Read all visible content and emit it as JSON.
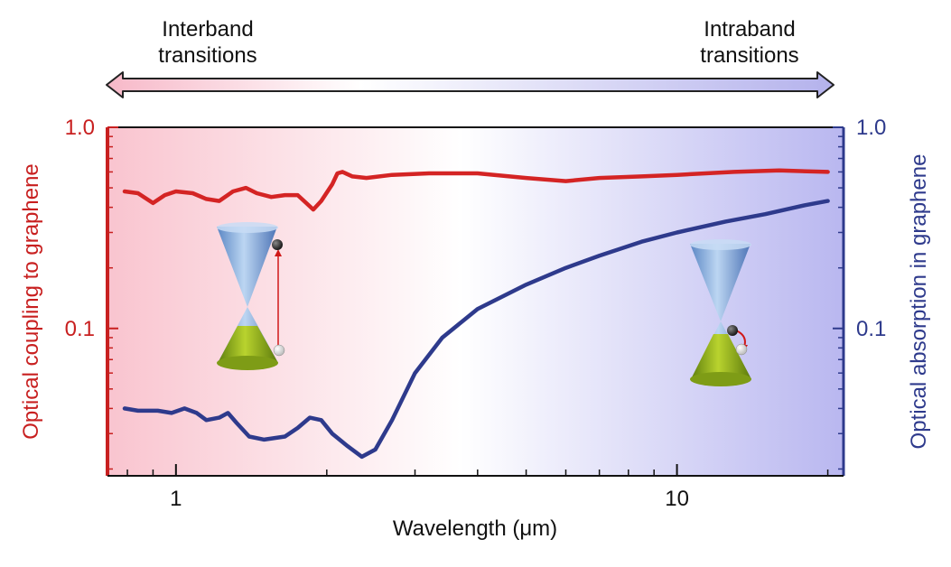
{
  "header": {
    "left_label_line1": "Interband",
    "left_label_line2": "transitions",
    "right_label_line1": "Intraband",
    "right_label_line2": "transitions"
  },
  "colors": {
    "red_series": "#d42424",
    "blue_series": "#2e3a8c",
    "left_axis": "#c82020",
    "right_axis": "#2e3a8c",
    "bg_left": "#f9c4cf",
    "bg_mid": "#ffffff",
    "bg_right": "#b9b7f0",
    "cone_blue": "#7ea8d8",
    "cone_green": "#8aaa1c"
  },
  "chart_data": {
    "type": "line",
    "xlabel": "Wavelength (μm)",
    "ylabel_left": "Optical coupling to graphene",
    "ylabel_right": "Optical absorption in graphene",
    "xscale": "log",
    "yscale": "log",
    "xlim": [
      0.73,
      21.5
    ],
    "ylim": [
      0.0185,
      1.0
    ],
    "x_ticks": [
      {
        "value": 1,
        "label": "1"
      },
      {
        "value": 10,
        "label": "10"
      }
    ],
    "y_ticks_left": [
      {
        "value": 1.0,
        "label": "1.0"
      },
      {
        "value": 0.1,
        "label": "0.1"
      }
    ],
    "y_ticks_right": [
      {
        "value": 1.0,
        "label": "1.0"
      },
      {
        "value": 0.1,
        "label": "0.1"
      }
    ],
    "grid": false,
    "series": [
      {
        "axis": "left",
        "points": [
          [
            0.79,
            0.48
          ],
          [
            0.84,
            0.47
          ],
          [
            0.9,
            0.42
          ],
          [
            0.95,
            0.46
          ],
          [
            1.0,
            0.48
          ],
          [
            1.08,
            0.47
          ],
          [
            1.15,
            0.44
          ],
          [
            1.22,
            0.43
          ],
          [
            1.3,
            0.48
          ],
          [
            1.38,
            0.5
          ],
          [
            1.45,
            0.47
          ],
          [
            1.55,
            0.45
          ],
          [
            1.65,
            0.46
          ],
          [
            1.75,
            0.46
          ],
          [
            1.82,
            0.42
          ],
          [
            1.88,
            0.39
          ],
          [
            1.95,
            0.43
          ],
          [
            2.05,
            0.52
          ],
          [
            2.1,
            0.59
          ],
          [
            2.15,
            0.6
          ],
          [
            2.25,
            0.57
          ],
          [
            2.4,
            0.56
          ],
          [
            2.7,
            0.58
          ],
          [
            3.2,
            0.59
          ],
          [
            4.0,
            0.59
          ],
          [
            5.0,
            0.56
          ],
          [
            6.0,
            0.54
          ],
          [
            7.0,
            0.56
          ],
          [
            8.5,
            0.57
          ],
          [
            10,
            0.58
          ],
          [
            13,
            0.6
          ],
          [
            16,
            0.61
          ],
          [
            20,
            0.6
          ]
        ]
      },
      {
        "axis": "right",
        "points": [
          [
            0.79,
            0.04
          ],
          [
            0.84,
            0.039
          ],
          [
            0.92,
            0.039
          ],
          [
            0.98,
            0.038
          ],
          [
            1.04,
            0.04
          ],
          [
            1.1,
            0.038
          ],
          [
            1.15,
            0.035
          ],
          [
            1.22,
            0.036
          ],
          [
            1.27,
            0.038
          ],
          [
            1.32,
            0.034
          ],
          [
            1.4,
            0.029
          ],
          [
            1.5,
            0.028
          ],
          [
            1.65,
            0.029
          ],
          [
            1.75,
            0.032
          ],
          [
            1.85,
            0.036
          ],
          [
            1.95,
            0.035
          ],
          [
            2.05,
            0.03
          ],
          [
            2.2,
            0.026
          ],
          [
            2.35,
            0.023
          ],
          [
            2.5,
            0.025
          ],
          [
            2.7,
            0.035
          ],
          [
            3.0,
            0.06
          ],
          [
            3.4,
            0.09
          ],
          [
            4.0,
            0.125
          ],
          [
            5.0,
            0.165
          ],
          [
            6.0,
            0.2
          ],
          [
            7.0,
            0.23
          ],
          [
            8.5,
            0.27
          ],
          [
            10,
            0.3
          ],
          [
            12.5,
            0.34
          ],
          [
            15,
            0.37
          ],
          [
            18,
            0.41
          ],
          [
            20,
            0.43
          ]
        ]
      }
    ]
  }
}
